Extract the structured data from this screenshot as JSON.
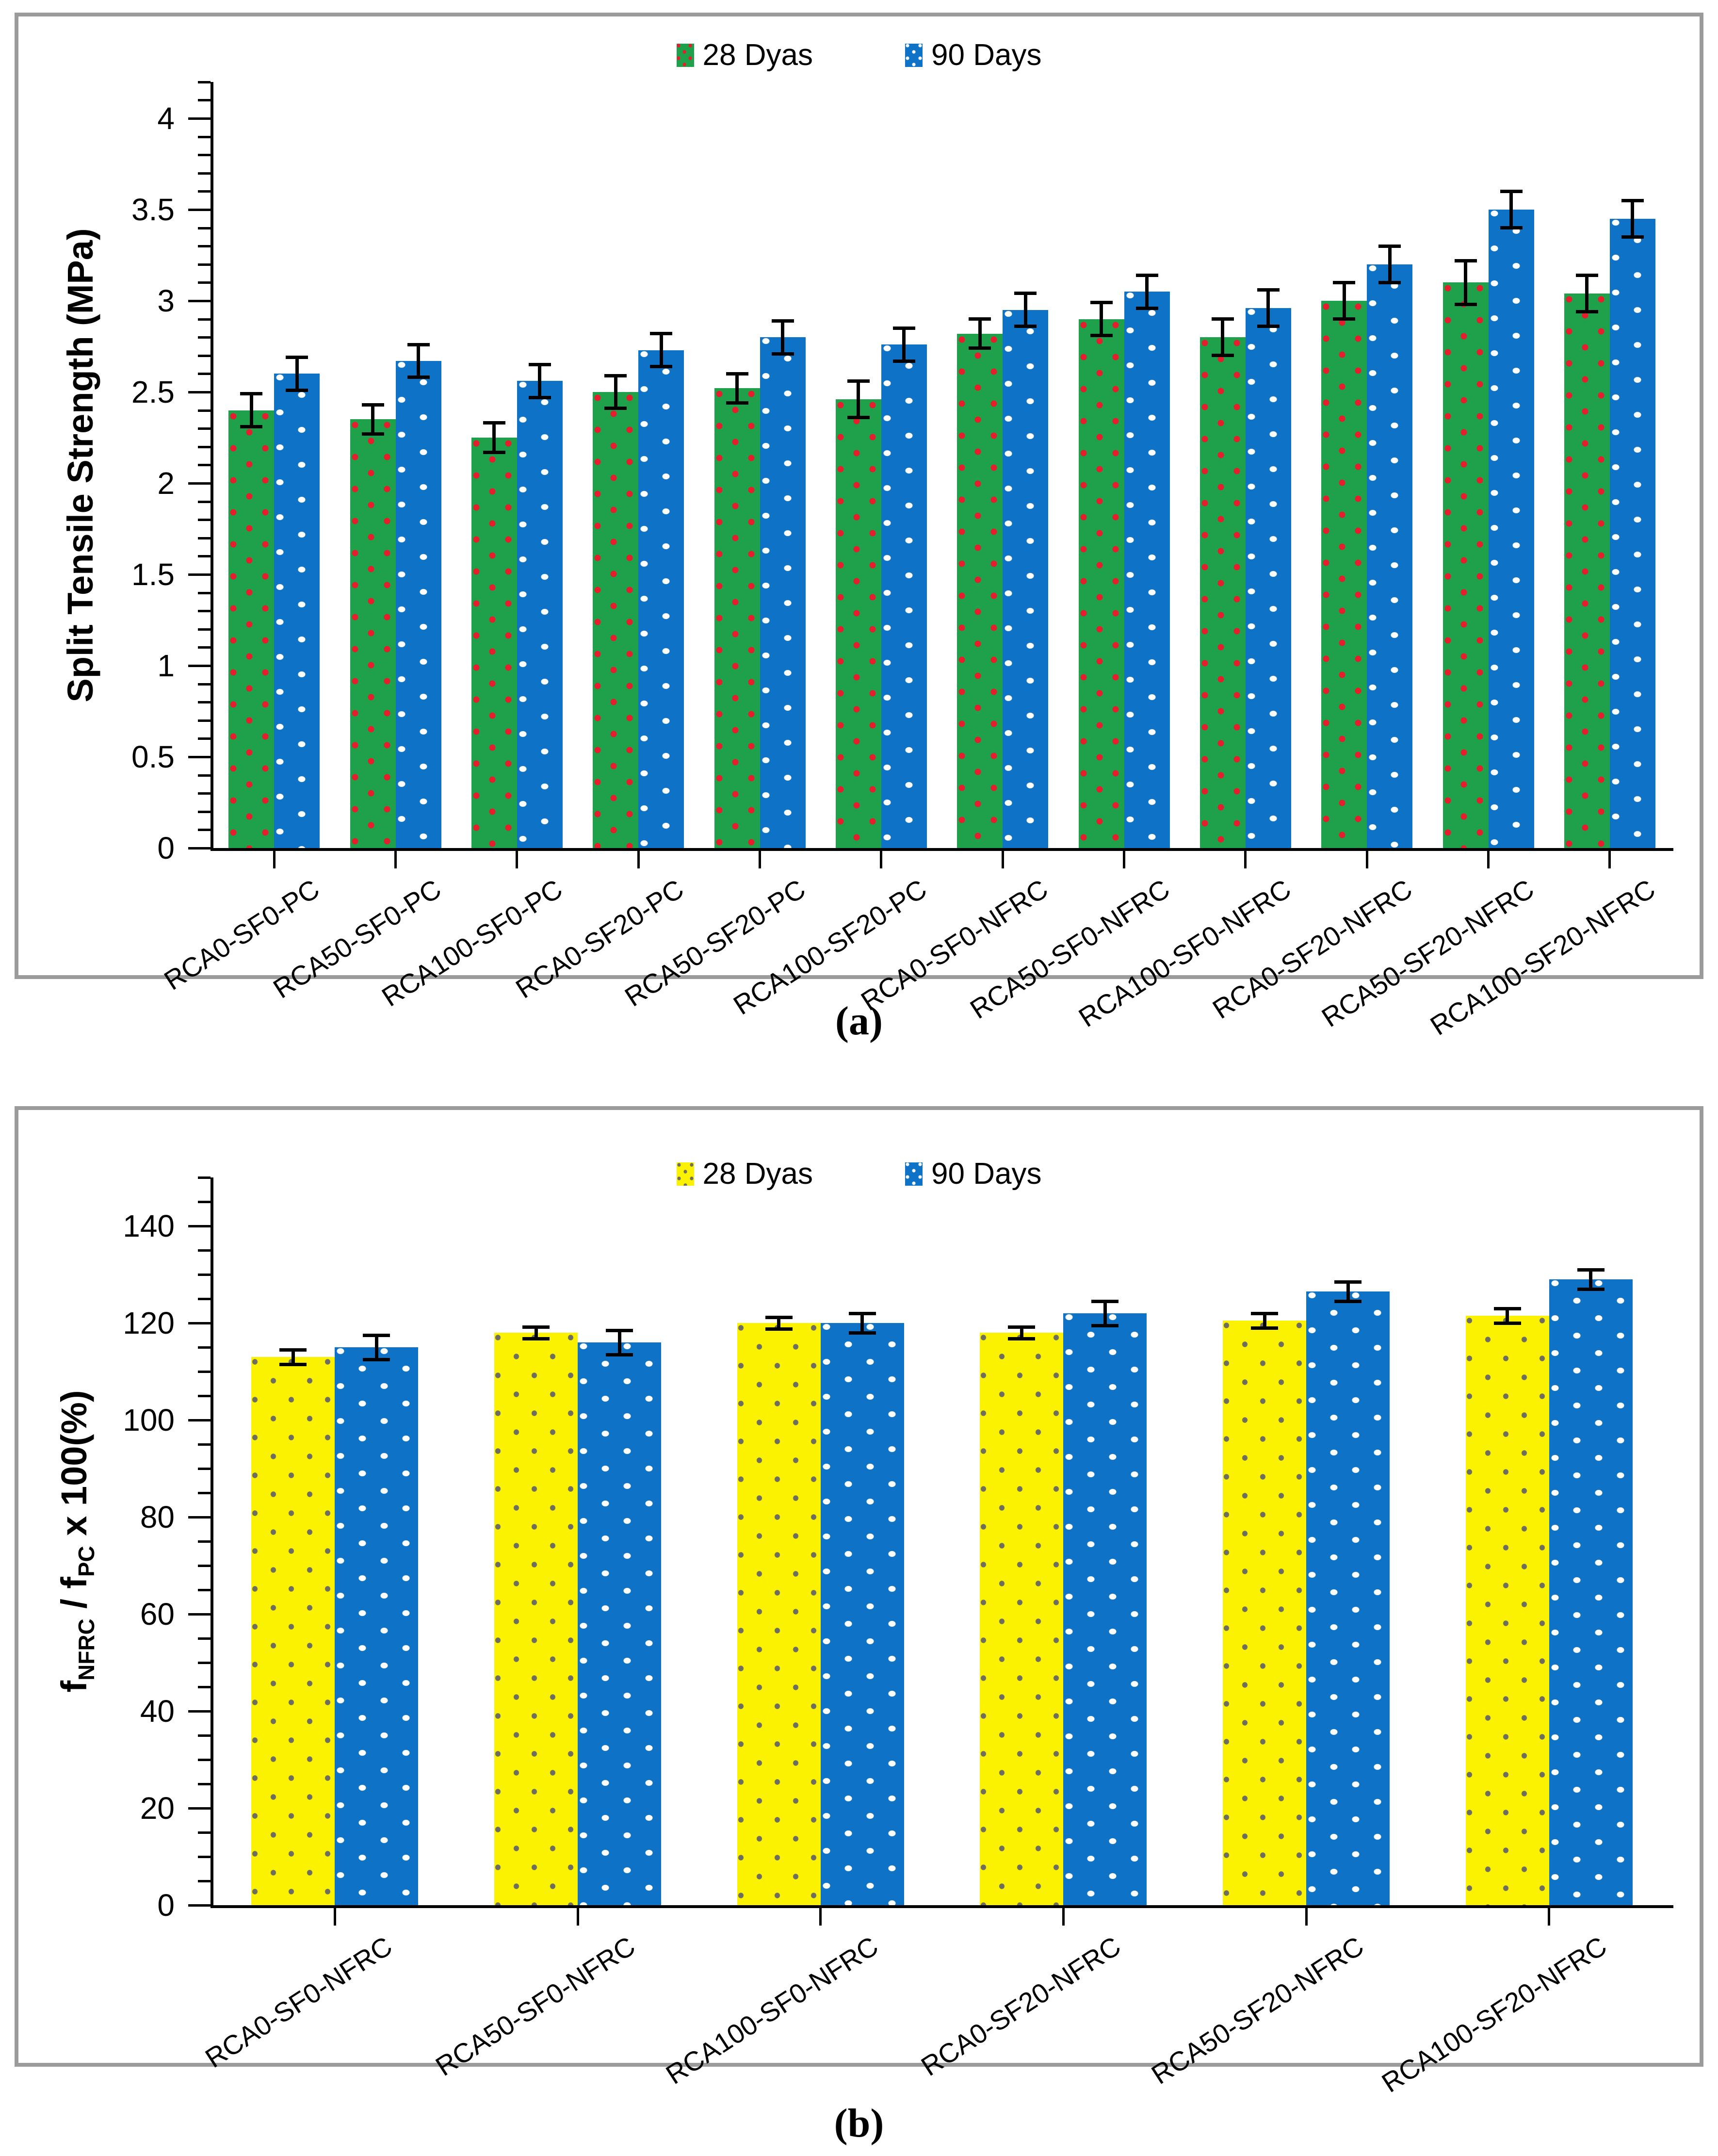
{
  "figure": {
    "caption_a": "(a)",
    "caption_b": "(b)"
  },
  "colors": {
    "green_bar": "#1FA14B",
    "green_bar_dots": "#E51D2C",
    "blue_bar": "#0E72C6",
    "blue_bar_dots": "#FFFFFF",
    "yellow_bar": "#FAF200",
    "yellow_bar_dots": "#6E6E5F",
    "axis": "#000000",
    "panel_border": "#9B9B9B"
  },
  "chart_data": [
    {
      "id": "a",
      "type": "bar",
      "title": "",
      "ylabel": "Split Tensile Strength (MPa)",
      "xlabel": "",
      "grid": false,
      "legend_position": "top-center",
      "categories": [
        "RCA0-SF0-PC",
        "RCA50-SF0-PC",
        "RCA100-SF0-PC",
        "RCA0-SF20-PC",
        "RCA50-SF20-PC",
        "RCA100-SF20-PC",
        "RCA0-SF0-NFRC",
        "RCA50-SF0-NFRC",
        "RCA100-SF0-NFRC",
        "RCA0-SF20-NFRC",
        "RCA50-SF20-NFRC",
        "RCA100-SF20-NFRC"
      ],
      "series": [
        {
          "name": "28 Dyas",
          "color_key": "green",
          "values": [
            2.4,
            2.35,
            2.25,
            2.5,
            2.52,
            2.46,
            2.82,
            2.9,
            2.8,
            3.0,
            3.1,
            3.04
          ],
          "errors": [
            0.09,
            0.08,
            0.08,
            0.09,
            0.08,
            0.1,
            0.08,
            0.09,
            0.1,
            0.1,
            0.12,
            0.1
          ]
        },
        {
          "name": "90 Days",
          "color_key": "blue",
          "values": [
            2.6,
            2.67,
            2.56,
            2.73,
            2.8,
            2.76,
            2.95,
            3.05,
            2.96,
            3.2,
            3.5,
            3.45
          ],
          "errors": [
            0.09,
            0.09,
            0.09,
            0.09,
            0.09,
            0.09,
            0.09,
            0.09,
            0.1,
            0.1,
            0.1,
            0.1
          ]
        }
      ],
      "ylim": [
        0,
        4.2
      ],
      "ytick_step": 0.5,
      "minor_tick_step": 0.1,
      "yticks": [
        "0",
        "0.5",
        "1",
        "1.5",
        "2",
        "2.5",
        "3",
        "3.5",
        "4"
      ]
    },
    {
      "id": "b",
      "type": "bar",
      "title": "",
      "ylabel_plain": "fNFRC / fPC x 100(%)",
      "ylabel_parts": {
        "f1": "f",
        "sub1": "NFRC",
        "mid": " / f",
        "sub2": "PC",
        "rest": " x 100(%)"
      },
      "xlabel": "",
      "grid": false,
      "legend_position": "top-center",
      "categories": [
        "RCA0-SF0-NFRC",
        "RCA50-SF0-NFRC",
        "RCA100-SF0-NFRC",
        "RCA0-SF20-NFRC",
        "RCA50-SF20-NFRC",
        "RCA100-SF20-NFRC"
      ],
      "series": [
        {
          "name": "28 Dyas",
          "color_key": "yellow",
          "values": [
            113,
            118,
            120,
            118,
            120.5,
            121.5
          ],
          "errors": [
            1.5,
            1.2,
            1.2,
            1.2,
            1.5,
            1.5
          ]
        },
        {
          "name": "90 Days",
          "color_key": "blue",
          "values": [
            115,
            116,
            120,
            122,
            126.5,
            129
          ],
          "errors": [
            2.5,
            2.5,
            2.0,
            2.5,
            2.0,
            2.0
          ]
        }
      ],
      "ylim": [
        0,
        150
      ],
      "ytick_step": 20,
      "minor_tick_step": 5,
      "yticks": [
        "0",
        "20",
        "40",
        "60",
        "80",
        "100",
        "120",
        "140"
      ]
    }
  ]
}
